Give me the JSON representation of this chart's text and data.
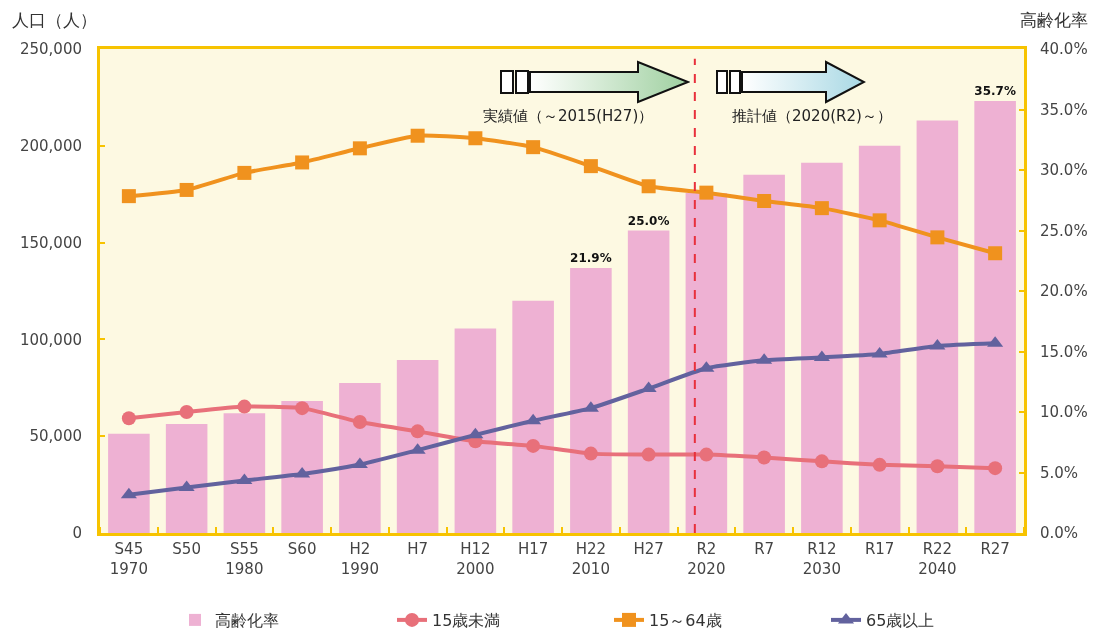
{
  "chart_data": {
    "type": "bar",
    "ylabel": "人口（人）",
    "y2label": "高齢化率",
    "categories": [
      "S45\n1970",
      "S50",
      "S55\n1980",
      "S60",
      "H2\n1990",
      "H7",
      "H12\n2000",
      "H17",
      "H22\n2010",
      "H27",
      "R2\n2020",
      "R7",
      "R12\n2030",
      "R17",
      "R22\n2040",
      "R27"
    ],
    "series": [
      {
        "name": "高齢化率",
        "axis": "y2",
        "color": "#eeb1d3",
        "values": [
          8.2,
          9.0,
          9.9,
          10.9,
          12.4,
          14.3,
          16.9,
          19.2,
          21.9,
          25.0,
          28.1,
          29.6,
          30.6,
          32.0,
          34.1,
          35.7
        ],
        "value_labels": [
          null,
          null,
          null,
          null,
          null,
          null,
          null,
          null,
          "21.9%",
          "25.0%",
          null,
          null,
          null,
          null,
          null,
          "35.7%"
        ]
      },
      {
        "name": "15歳未満",
        "type": "line",
        "color": "#e8707a",
        "marker": "circle",
        "values": [
          59300,
          62500,
          65300,
          64500,
          57300,
          52500,
          47400,
          45000,
          41000,
          40500,
          40500,
          39000,
          37000,
          35200,
          34500,
          33500
        ]
      },
      {
        "name": "15～64歳",
        "type": "line",
        "color": "#f0921e",
        "marker": "square",
        "values": [
          174000,
          177200,
          186000,
          191400,
          198700,
          205200,
          203900,
          199300,
          189500,
          179100,
          175800,
          171500,
          167800,
          161500,
          152700,
          144500
        ]
      },
      {
        "name": "65歳以上",
        "type": "line",
        "color": "#62629e",
        "marker": "triangle",
        "values": [
          19800,
          23500,
          27100,
          30500,
          35400,
          42800,
          50700,
          58000,
          64500,
          74600,
          85100,
          89200,
          90700,
          92500,
          96600,
          98000
        ]
      }
    ],
    "ylim": [
      0,
      250000
    ],
    "yticks": [
      0,
      {
        "value": 50000,
        "label": "50,000"
      },
      {
        "value": 100000,
        "label": "100,000"
      },
      {
        "value": 150000,
        "label": "150,000"
      },
      {
        "value": 200000,
        "label": "200,000"
      },
      {
        "value": 250000,
        "label": "250,000"
      }
    ],
    "y2lim": [
      0,
      40
    ],
    "y2ticks": [
      {
        "value": 0,
        "label": "0.0%"
      },
      {
        "value": 5,
        "label": "5.0%"
      },
      {
        "value": 10,
        "label": "10.0%"
      },
      {
        "value": 15,
        "label": "15.0%"
      },
      {
        "value": 20,
        "label": "20.0%"
      },
      {
        "value": 25,
        "label": "25.0%"
      },
      {
        "value": 30,
        "label": "30.0%"
      },
      {
        "value": 35,
        "label": "35.0%"
      },
      {
        "value": 40,
        "label": "40.0%"
      }
    ],
    "ref_lines": [
      {
        "axis": "x",
        "value": "R2\n2020",
        "color": "#e8303c",
        "line_style": "dashed"
      }
    ],
    "annotations": [
      "実績値（～2015(H27)）",
      "推計値（2020(R2)～）"
    ],
    "legend": "bottom"
  }
}
